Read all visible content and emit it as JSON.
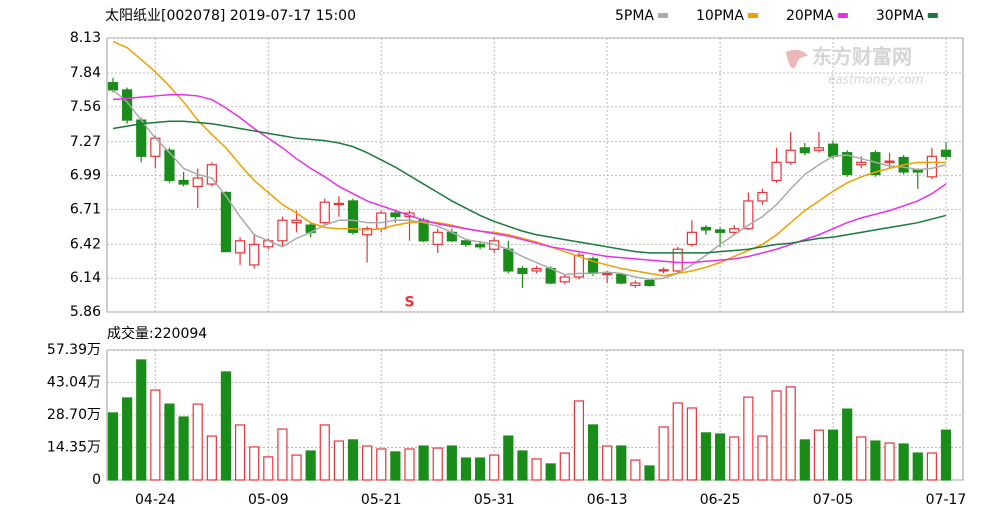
{
  "watermark": {
    "cn": "东方财富网",
    "en": "eastmoney.com"
  },
  "chart_data": [
    {
      "type": "candlestick",
      "title": "太阳纸业[002078] 2019-07-17 15:00",
      "up_color": "#e8343a",
      "down_color": "#1a8c1a",
      "ylim": [
        5.86,
        8.13
      ],
      "yticks": [
        8.13,
        7.84,
        7.56,
        7.27,
        6.99,
        6.71,
        6.42,
        6.14,
        5.86
      ],
      "grid": true,
      "annotation": {
        "text": "S",
        "index": 21,
        "y": 5.94
      },
      "open": [
        7.76,
        7.7,
        7.45,
        7.15,
        7.2,
        6.95,
        6.9,
        6.92,
        6.85,
        6.35,
        6.25,
        6.4,
        6.45,
        6.6,
        6.58,
        6.6,
        6.75,
        6.78,
        6.5,
        6.55,
        6.68,
        6.65,
        6.62,
        6.42,
        6.52,
        6.45,
        6.42,
        6.38,
        6.38,
        6.22,
        6.2,
        6.22,
        6.11,
        6.15,
        6.3,
        6.17,
        6.17,
        6.08,
        6.12,
        6.2,
        6.2,
        6.42,
        6.56,
        6.54,
        6.52,
        6.55,
        6.78,
        6.95,
        7.1,
        7.22,
        7.2,
        7.25,
        7.18,
        7.08,
        7.18,
        7.1,
        7.14,
        7.04,
        6.98,
        7.2
      ],
      "high": [
        7.8,
        7.72,
        7.47,
        7.32,
        7.22,
        7.02,
        7.05,
        7.1,
        6.86,
        6.48,
        6.5,
        6.47,
        6.65,
        6.7,
        6.6,
        6.8,
        6.82,
        6.8,
        6.57,
        6.7,
        6.7,
        6.7,
        6.64,
        6.55,
        6.55,
        6.47,
        6.45,
        6.48,
        6.45,
        6.24,
        6.24,
        6.24,
        6.17,
        6.35,
        6.32,
        6.2,
        6.18,
        6.12,
        6.13,
        6.23,
        6.4,
        6.62,
        6.58,
        6.56,
        6.58,
        6.85,
        6.88,
        7.22,
        7.35,
        7.26,
        7.35,
        7.28,
        7.2,
        7.15,
        7.2,
        7.18,
        7.16,
        7.05,
        7.22,
        7.27
      ],
      "low": [
        7.68,
        7.42,
        7.1,
        7.05,
        6.93,
        6.9,
        6.72,
        6.9,
        6.36,
        6.25,
        6.22,
        6.38,
        6.4,
        6.52,
        6.48,
        6.58,
        6.65,
        6.5,
        6.27,
        6.52,
        6.6,
        6.45,
        6.44,
        6.35,
        6.44,
        6.4,
        6.38,
        6.35,
        6.18,
        6.06,
        6.18,
        6.09,
        6.09,
        6.13,
        6.16,
        6.1,
        6.09,
        6.06,
        6.07,
        6.18,
        6.18,
        6.4,
        6.5,
        6.4,
        6.5,
        6.54,
        6.75,
        6.93,
        7.08,
        7.16,
        7.18,
        7.13,
        6.98,
        7.05,
        6.98,
        7.05,
        7.0,
        6.88,
        6.96,
        7.12
      ],
      "close": [
        7.7,
        7.45,
        7.15,
        7.3,
        6.95,
        6.92,
        6.97,
        7.08,
        6.36,
        6.45,
        6.42,
        6.45,
        6.62,
        6.62,
        6.52,
        6.77,
        6.76,
        6.52,
        6.55,
        6.68,
        6.65,
        6.68,
        6.45,
        6.52,
        6.45,
        6.42,
        6.4,
        6.45,
        6.2,
        6.18,
        6.22,
        6.1,
        6.15,
        6.33,
        6.18,
        6.18,
        6.1,
        6.1,
        6.08,
        6.21,
        6.38,
        6.52,
        6.54,
        6.52,
        6.55,
        6.78,
        6.85,
        7.1,
        7.2,
        7.18,
        7.22,
        7.15,
        7.0,
        7.1,
        7.0,
        7.11,
        7.02,
        7.02,
        7.15,
        7.15
      ],
      "series": [
        {
          "name": "5PMA",
          "color": "#aaaaaa",
          "values": [
            7.7,
            7.6,
            7.45,
            7.3,
            7.18,
            7.05,
            7.0,
            6.97,
            6.82,
            6.65,
            6.5,
            6.45,
            6.4,
            6.47,
            6.52,
            6.58,
            6.62,
            6.62,
            6.6,
            6.6,
            6.62,
            6.62,
            6.6,
            6.57,
            6.52,
            6.46,
            6.44,
            6.42,
            6.38,
            6.32,
            6.27,
            6.22,
            6.17,
            6.18,
            6.18,
            6.19,
            6.18,
            6.15,
            6.13,
            6.14,
            6.18,
            6.25,
            6.33,
            6.42,
            6.5,
            6.58,
            6.65,
            6.75,
            6.88,
            7.0,
            7.08,
            7.15,
            7.16,
            7.13,
            7.1,
            7.07,
            7.06,
            7.04,
            7.05,
            7.08
          ]
        },
        {
          "name": "10PMA",
          "color": "#f0a000",
          "values": [
            8.1,
            8.05,
            7.95,
            7.85,
            7.73,
            7.6,
            7.45,
            7.33,
            7.22,
            7.08,
            6.95,
            6.85,
            6.75,
            6.68,
            6.6,
            6.56,
            6.55,
            6.55,
            6.54,
            6.55,
            6.58,
            6.6,
            6.61,
            6.6,
            6.58,
            6.55,
            6.53,
            6.52,
            6.5,
            6.47,
            6.44,
            6.4,
            6.36,
            6.32,
            6.28,
            6.25,
            6.22,
            6.2,
            6.18,
            6.16,
            6.18,
            6.2,
            6.23,
            6.27,
            6.32,
            6.37,
            6.42,
            6.5,
            6.6,
            6.7,
            6.78,
            6.86,
            6.93,
            6.98,
            7.02,
            7.05,
            7.08,
            7.1,
            7.1,
            7.1
          ]
        },
        {
          "name": "20PMA",
          "color": "#e830e8",
          "values": [
            7.62,
            7.63,
            7.64,
            7.65,
            7.66,
            7.66,
            7.65,
            7.62,
            7.55,
            7.47,
            7.38,
            7.3,
            7.22,
            7.13,
            7.05,
            6.98,
            6.9,
            6.84,
            6.78,
            6.74,
            6.7,
            6.66,
            6.62,
            6.59,
            6.57,
            6.55,
            6.53,
            6.51,
            6.49,
            6.46,
            6.43,
            6.4,
            6.38,
            6.36,
            6.34,
            6.32,
            6.31,
            6.3,
            6.29,
            6.28,
            6.27,
            6.27,
            6.28,
            6.29,
            6.3,
            6.32,
            6.35,
            6.38,
            6.42,
            6.46,
            6.5,
            6.55,
            6.6,
            6.64,
            6.67,
            6.7,
            6.74,
            6.78,
            6.84,
            6.92
          ]
        },
        {
          "name": "30PMA",
          "color": "#1a7a3a",
          "values": [
            7.38,
            7.4,
            7.42,
            7.43,
            7.44,
            7.44,
            7.43,
            7.42,
            7.4,
            7.38,
            7.36,
            7.34,
            7.32,
            7.3,
            7.29,
            7.28,
            7.26,
            7.23,
            7.18,
            7.12,
            7.06,
            6.99,
            6.92,
            6.85,
            6.78,
            6.72,
            6.66,
            6.61,
            6.57,
            6.53,
            6.5,
            6.48,
            6.46,
            6.44,
            6.42,
            6.4,
            6.38,
            6.36,
            6.35,
            6.35,
            6.35,
            6.35,
            6.35,
            6.36,
            6.37,
            6.38,
            6.4,
            6.42,
            6.43,
            6.45,
            6.47,
            6.48,
            6.5,
            6.52,
            6.54,
            6.56,
            6.58,
            6.6,
            6.63,
            6.66
          ]
        }
      ]
    },
    {
      "type": "bar",
      "title": "成交量:220094",
      "categories": [
        null,
        null,
        null,
        "04-24",
        null,
        null,
        null,
        null,
        null,
        null,
        null,
        "05-09",
        null,
        null,
        null,
        null,
        null,
        null,
        null,
        "05-21",
        null,
        null,
        null,
        null,
        null,
        null,
        null,
        "05-31",
        null,
        null,
        null,
        null,
        null,
        null,
        null,
        "06-13",
        null,
        null,
        null,
        null,
        null,
        null,
        null,
        "06-25",
        null,
        null,
        null,
        null,
        null,
        null,
        null,
        "07-05",
        null,
        null,
        null,
        null,
        null,
        null,
        null,
        "07-17"
      ],
      "values": [
        29.6,
        36.2,
        53,
        39.7,
        33.5,
        27.8,
        33.5,
        19.4,
        47.7,
        24.3,
        14.6,
        10.2,
        22.5,
        11,
        12.8,
        24.3,
        17.2,
        17.7,
        15,
        13.7,
        12.4,
        13.7,
        15,
        14.1,
        15,
        9.7,
        9.7,
        11,
        19.4,
        12.8,
        9.3,
        7.1,
        11.9,
        34.9,
        24.3,
        15,
        15,
        8.8,
        6.2,
        23.4,
        34,
        31.8,
        20.8,
        20.3,
        19,
        36.6,
        19.4,
        39.3,
        41.1,
        17.7,
        22,
        22,
        31.3,
        19,
        17.2,
        16.3,
        15.9,
        11.9,
        11.9,
        22.01
      ],
      "ylim": [
        0,
        57.39
      ],
      "yticks": [
        {
          "value": 57.39,
          "label": "57.39万"
        },
        {
          "value": 43.04,
          "label": "43.04万"
        },
        {
          "value": 28.7,
          "label": "28.70万"
        },
        {
          "value": 14.35,
          "label": "14.35万"
        },
        0
      ],
      "grid": true
    }
  ]
}
